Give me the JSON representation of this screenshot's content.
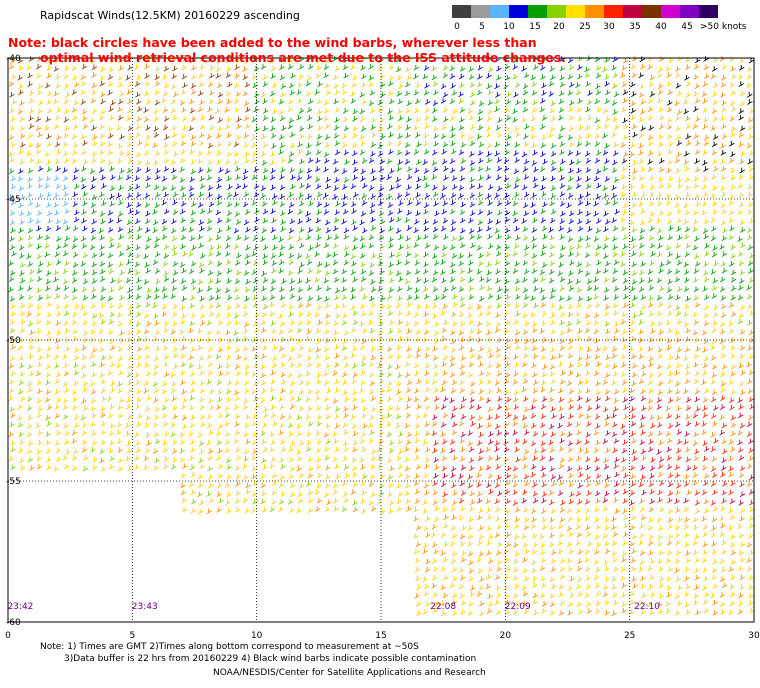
{
  "title": "Rapidscat Winds(12.5KM) 20160229 ascending",
  "note_line1": "Note: black circles have been added to the wind barbs, wherever less than",
  "note_line2": "optimal wind retrieval conditions are met due to the ISS attitude changes.",
  "scale": {
    "labels": [
      "0",
      "5",
      "10",
      "15",
      "20",
      "25",
      "30",
      "35",
      "40",
      "45",
      ">50 knots"
    ],
    "colors": [
      "#404040",
      "#9a9a9a",
      "#5ab4ff",
      "#0000d8",
      "#00a000",
      "#8ad000",
      "#ffe000",
      "#ff9000",
      "#ff2000",
      "#c00040",
      "#7a3000",
      "#d000d0",
      "#8000c0",
      "#300060"
    ]
  },
  "y_axis": {
    "labels": [
      "-40",
      "-45",
      "-50",
      "-55",
      "-60"
    ],
    "values": [
      -40,
      -45,
      -50,
      -55,
      -60
    ]
  },
  "x_axis": {
    "labels": [
      "0",
      "5",
      "10",
      "15",
      "20",
      "25",
      "30"
    ],
    "values": [
      0,
      5,
      10,
      15,
      20,
      25,
      30
    ]
  },
  "times": [
    {
      "label": "23:42",
      "lon": 0.3
    },
    {
      "label": "23:43",
      "lon": 5.3
    },
    {
      "label": "22:08",
      "lon": 17.3
    },
    {
      "label": "22:09",
      "lon": 20.3
    },
    {
      "label": "22:10",
      "lon": 25.5
    }
  ],
  "footer_line1": "Note: 1) Times are GMT 2)Times along bottom correspond to measurement at ~50S",
  "footer_line2": "3)Data buffer is 22 hrs from 20160229 4) Black wind barbs indicate possible contamination",
  "footer_line3": "NOAA/NESDIS/Center for Satellite Applications and Research"
}
